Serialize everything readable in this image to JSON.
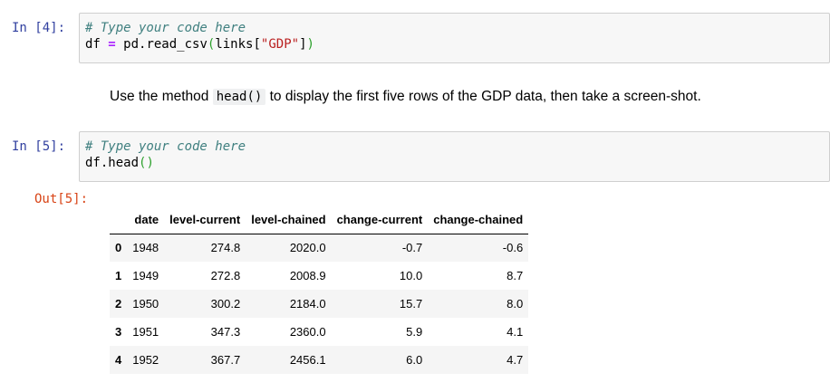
{
  "cell4": {
    "prompt": "In [4]:",
    "comment": "# Type your code here",
    "line2": {
      "lhs": "df ",
      "op": "=",
      "call": " pd.read_csv",
      "open": "(",
      "mid": "links[",
      "str": "\"GDP\"",
      "close_bracket": "]",
      "close": ")"
    }
  },
  "markdown": {
    "before": "Use the method ",
    "code": "head()",
    "after": " to display the first five rows of the GDP data, then take a screen-shot."
  },
  "cell5": {
    "prompt": "In [5]:",
    "comment": "# Type your code here",
    "line2": {
      "name": "df.head",
      "parens": "()"
    },
    "out_prompt": "Out[5]:"
  },
  "dataframe": {
    "columns": [
      "",
      "date",
      "level-current",
      "level-chained",
      "change-current",
      "change-chained"
    ],
    "rows": [
      [
        "0",
        "1948",
        "274.8",
        "2020.0",
        "-0.7",
        "-0.6"
      ],
      [
        "1",
        "1949",
        "272.8",
        "2008.9",
        "10.0",
        "8.7"
      ],
      [
        "2",
        "1950",
        "300.2",
        "2184.0",
        "15.7",
        "8.0"
      ],
      [
        "3",
        "1951",
        "347.3",
        "2360.0",
        "5.9",
        "4.1"
      ],
      [
        "4",
        "1952",
        "367.7",
        "2456.1",
        "6.0",
        "4.7"
      ]
    ]
  }
}
